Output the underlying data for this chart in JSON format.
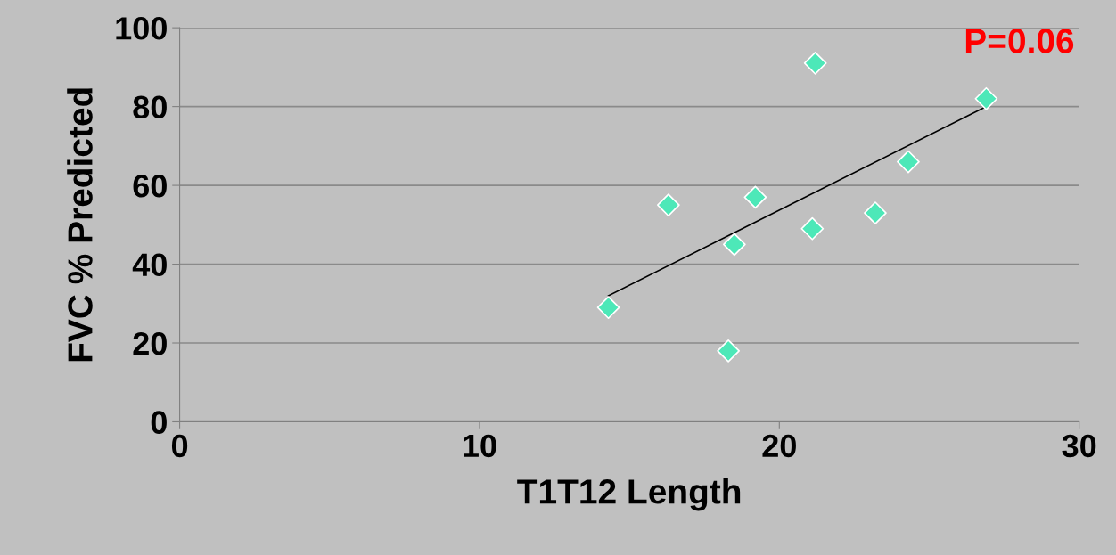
{
  "chart_data": {
    "type": "scatter",
    "xlabel": "T1T12 Length",
    "ylabel": "FVC % Predicted",
    "xlim": [
      0,
      30
    ],
    "xticks": [
      0,
      10,
      20,
      30
    ],
    "ylim": [
      0,
      100
    ],
    "yticks": [
      0,
      20,
      40,
      60,
      80,
      100
    ],
    "grid": "y",
    "series": [
      {
        "marker": "diamond",
        "color": "#4de8b8",
        "x": [
          14.3,
          16.3,
          18.3,
          18.5,
          19.2,
          21.1,
          21.2,
          23.2,
          24.3,
          26.9
        ],
        "values": [
          29,
          55,
          18,
          45,
          57,
          49,
          91,
          53,
          66,
          82
        ]
      },
      {
        "type": "line",
        "marker": "none",
        "color": "#000000",
        "x": [
          14.3,
          26.9
        ],
        "values": [
          32,
          80
        ]
      }
    ],
    "annotations": [
      "P=0.06"
    ]
  }
}
